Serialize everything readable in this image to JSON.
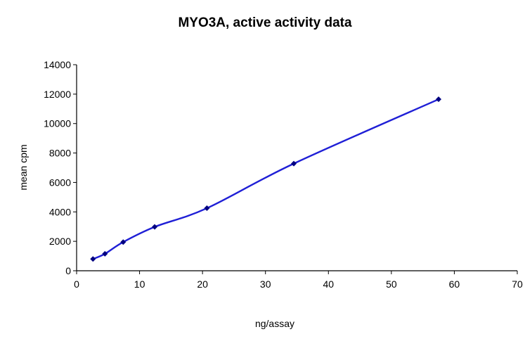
{
  "chart_data": {
    "type": "line",
    "title": "MYO3A, active activity data",
    "xlabel": "ng/assay",
    "ylabel": "mean cpm",
    "xlim": [
      0,
      70
    ],
    "ylim": [
      0,
      14000
    ],
    "x_ticks": [
      0,
      10,
      20,
      30,
      40,
      50,
      60,
      70
    ],
    "y_ticks": [
      0,
      2000,
      4000,
      6000,
      8000,
      10000,
      12000,
      14000
    ],
    "grid": false,
    "legend": "none",
    "series": [
      {
        "x": [
          2.6,
          4.5,
          7.4,
          12.4,
          20.7,
          34.5,
          57.5
        ],
        "y": [
          800,
          1150,
          1950,
          2980,
          4250,
          7280,
          11650
        ],
        "color": "#1f1fd6",
        "marker_color": "#000080"
      }
    ]
  }
}
